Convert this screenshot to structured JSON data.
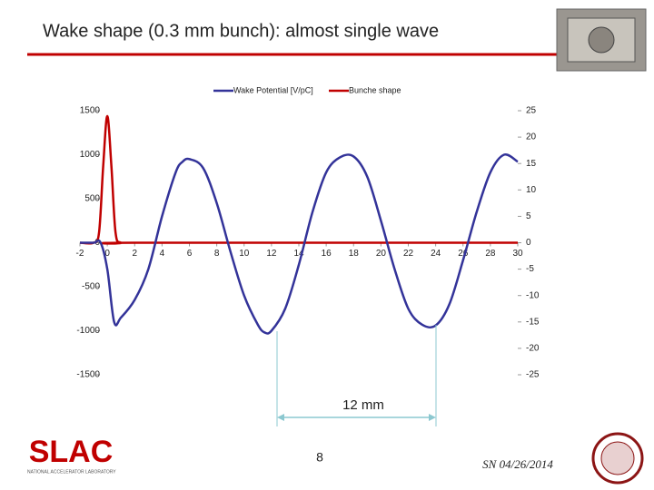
{
  "title": "Wake shape (0.3 mm bunch): almost single wave",
  "chart_data": {
    "type": "line",
    "series": [
      {
        "name": "Wake Potential [V/pC]",
        "color": "#333399",
        "axis": "y",
        "x": [
          -2,
          -1,
          -0.5,
          0,
          0.5,
          1,
          2,
          3,
          4,
          5,
          5.5,
          6,
          7,
          8,
          9,
          10,
          11,
          11.5,
          12,
          13,
          14,
          15,
          16,
          17,
          18,
          19,
          20,
          21,
          22,
          23,
          24,
          25,
          26,
          27,
          28,
          29,
          30
        ],
        "values": [
          0,
          0,
          5,
          -300,
          -900,
          -850,
          -650,
          -300,
          300,
          800,
          920,
          950,
          850,
          450,
          -100,
          -600,
          -930,
          -1020,
          -1000,
          -750,
          -250,
          350,
          800,
          970,
          980,
          750,
          250,
          -300,
          -750,
          -930,
          -940,
          -700,
          -200,
          350,
          800,
          1000,
          920
        ]
      },
      {
        "name": "Bunche shape",
        "color": "#c00000",
        "axis": "y2",
        "x": [
          -2,
          -1,
          -0.6,
          -0.3,
          0,
          0.3,
          0.6,
          1,
          2,
          30
        ],
        "values": [
          0,
          0,
          2,
          14.5,
          24,
          14.5,
          2,
          0,
          0,
          0
        ]
      }
    ],
    "xlim": [
      -2,
      30
    ],
    "xticks": [
      -2,
      0,
      2,
      4,
      6,
      8,
      10,
      12,
      14,
      16,
      18,
      20,
      22,
      24,
      26,
      28,
      30
    ],
    "ylim": [
      -1500,
      1500
    ],
    "yticks": [
      -1500,
      -1000,
      -500,
      0,
      500,
      1000,
      1500
    ],
    "y2lim": [
      -25,
      25
    ],
    "y2ticks": [
      -25,
      -20,
      -15,
      -10,
      -5,
      0,
      5,
      10,
      15,
      20,
      25
    ],
    "legend": "top",
    "annotation": "12 mm"
  },
  "footer": {
    "page": "8",
    "author_date": "SN 04/26/2014",
    "logo": "SLAC",
    "logo_subtitle": "NATIONAL ACCELERATOR LABORATORY"
  }
}
